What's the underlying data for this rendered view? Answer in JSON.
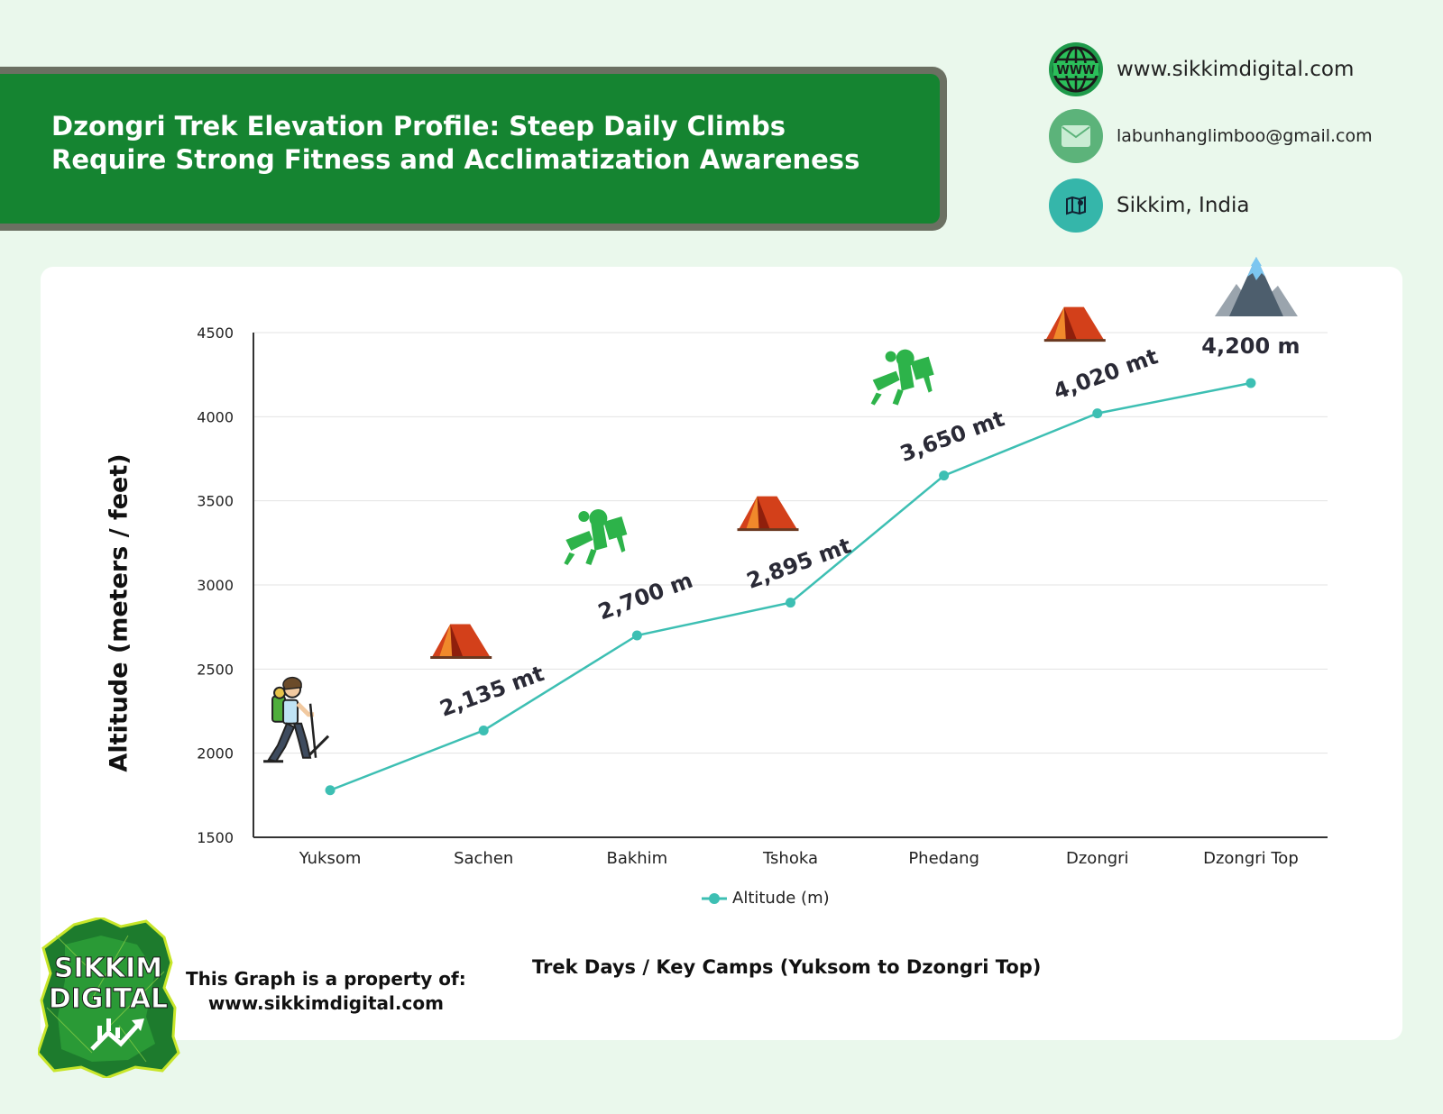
{
  "header": {
    "title": "Dzongri Trek Elevation Profile: Steep Daily Climbs Require Strong Fitness and Acclimatization Awareness"
  },
  "contacts": {
    "website": "www.sikkimdigital.com",
    "email": "labunhanglimboo@gmail.com",
    "location": "Sikkim, India",
    "www_icon_text": "WWW"
  },
  "colors": {
    "banner": "#158431",
    "line": "#3dbfb3",
    "tent": "#d3401a",
    "camp_icon": "#2db34a",
    "background": "#eaf8ec"
  },
  "chart_data": {
    "type": "line",
    "categories": [
      "Yuksom",
      "Sachen",
      "Bakhim",
      "Tshoka",
      "Phedang",
      "Dzongri",
      "Dzongri Top"
    ],
    "series": [
      {
        "name": "Altitude (m)",
        "values": [
          1780,
          2135,
          2700,
          2895,
          3650,
          4020,
          4200
        ]
      }
    ],
    "point_labels": [
      "",
      "2,135 mt",
      "2,700 m",
      "2,895 mt",
      "3,650 mt",
      "4,020 mt",
      "4,200 m"
    ],
    "point_icons": [
      "hiker-icon",
      "tent-icon",
      "campers-icon",
      "tent-icon",
      "campers-icon",
      "tent-icon",
      "mountain-icon"
    ],
    "yticks": [
      1500,
      2000,
      2500,
      3000,
      3500,
      4000,
      4500
    ],
    "ylim": [
      1500,
      4500
    ],
    "xlabel": "Trek Days / Key Camps (Yuksom to Dzongri Top)",
    "ylabel": "Altitude (meters / feet)",
    "grid": true,
    "legend": "bottom-center"
  },
  "footer": {
    "note_line1": "This Graph is a property of:",
    "note_line2": "www.sikkimdigital.com",
    "logo_line1": "SIKKIM",
    "logo_line2": "DIGITAL"
  }
}
